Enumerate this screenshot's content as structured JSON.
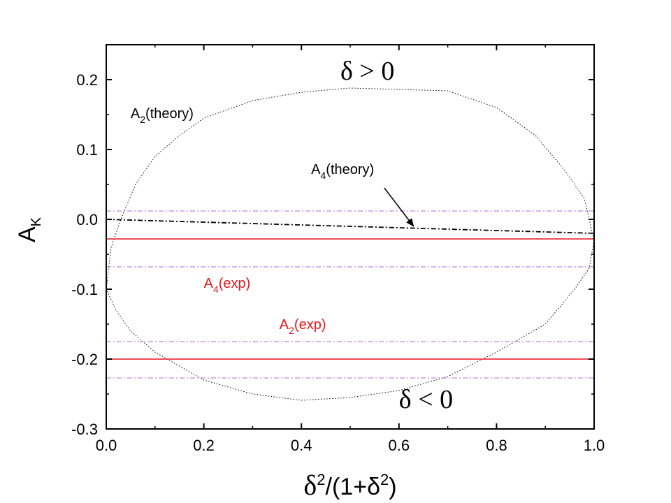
{
  "chart_data": {
    "type": "line",
    "title": "",
    "xlabel": {
      "base": "δ",
      "sup1": "2",
      "mid": "/(1+δ",
      "sup2": "2",
      "end": ")"
    },
    "ylabel": {
      "base": "A",
      "sub": "K"
    },
    "xlim": [
      0.0,
      1.0
    ],
    "ylim": [
      -0.3,
      0.25
    ],
    "x_ticks": [
      "0.0",
      "0.2",
      "0.4",
      "0.6",
      "0.8",
      "1.0"
    ],
    "y_ticks": [
      "-0.3",
      "-0.2",
      "-0.1",
      "0.0",
      "0.1",
      "0.2"
    ],
    "x_tick_values": [
      0.0,
      0.2,
      0.4,
      0.6,
      0.8,
      1.0
    ],
    "y_tick_values": [
      -0.3,
      -0.2,
      -0.1,
      0.0,
      0.1,
      0.2
    ],
    "series": [
      {
        "style": "dotted",
        "color": "#000000",
        "points": [
          [
            0.0,
            -0.1
          ],
          [
            0.01,
            -0.04
          ],
          [
            0.03,
            0.0
          ],
          [
            0.06,
            0.05
          ],
          [
            0.1,
            0.09
          ],
          [
            0.15,
            0.12
          ],
          [
            0.2,
            0.145
          ],
          [
            0.3,
            0.17
          ],
          [
            0.4,
            0.182
          ],
          [
            0.5,
            0.188
          ],
          [
            0.6,
            0.186
          ],
          [
            0.7,
            0.184
          ],
          [
            0.8,
            0.16
          ],
          [
            0.88,
            0.12
          ],
          [
            0.94,
            0.07
          ],
          [
            0.98,
            0.03
          ],
          [
            1.0,
            -0.03
          ],
          [
            0.99,
            -0.07
          ],
          [
            0.96,
            -0.1
          ],
          [
            0.9,
            -0.15
          ],
          [
            0.8,
            -0.19
          ],
          [
            0.7,
            -0.225
          ],
          [
            0.6,
            -0.245
          ],
          [
            0.5,
            -0.255
          ],
          [
            0.4,
            -0.259
          ],
          [
            0.3,
            -0.25
          ],
          [
            0.2,
            -0.23
          ],
          [
            0.1,
            -0.19
          ],
          [
            0.05,
            -0.16
          ],
          [
            0.02,
            -0.13
          ],
          [
            0.0,
            -0.1
          ]
        ]
      },
      {
        "style": "dashdot",
        "color": "#000000",
        "points": [
          [
            0.0,
            0.0
          ],
          [
            0.2,
            -0.004
          ],
          [
            0.4,
            -0.008
          ],
          [
            0.6,
            -0.012
          ],
          [
            0.8,
            -0.016
          ],
          [
            1.0,
            -0.02
          ]
        ]
      },
      {
        "style": "solid",
        "color": "#e8141a",
        "points": [
          [
            0.0,
            -0.028
          ],
          [
            1.0,
            -0.028
          ]
        ]
      },
      {
        "style": "solid",
        "color": "#e8141a",
        "points": [
          [
            0.0,
            -0.2
          ],
          [
            1.0,
            -0.2
          ]
        ]
      },
      {
        "style": "dashdot",
        "color": "#b36ad9",
        "points": [
          [
            0.0,
            0.012
          ],
          [
            1.0,
            0.012
          ]
        ]
      },
      {
        "style": "dashdot",
        "color": "#b36ad9",
        "points": [
          [
            0.0,
            -0.068
          ],
          [
            1.0,
            -0.068
          ]
        ]
      },
      {
        "style": "dashdot",
        "color": "#b36ad9",
        "points": [
          [
            0.0,
            -0.175
          ],
          [
            1.0,
            -0.175
          ]
        ]
      },
      {
        "style": "dashdot",
        "color": "#b36ad9",
        "points": [
          [
            0.0,
            -0.227
          ],
          [
            1.0,
            -0.227
          ]
        ]
      }
    ],
    "annotations": [
      {
        "name": "a2-theory-label",
        "base": "A",
        "sub": "2",
        "rest": "(theory)",
        "color": "#000000",
        "x": 0.05,
        "y": 0.145
      },
      {
        "name": "a4-theory-label",
        "base": "A",
        "sub": "4",
        "rest": "(theory)",
        "color": "#000000",
        "x": 0.42,
        "y": 0.065
      },
      {
        "name": "a4-exp-label",
        "base": "A",
        "sub": "4",
        "rest": "(exp)",
        "color": "#e8141a",
        "x": 0.2,
        "y": -0.098
      },
      {
        "name": "a2-exp-label",
        "base": "A",
        "sub": "2",
        "rest": "(exp)",
        "color": "#e8141a",
        "x": 0.355,
        "y": -0.157
      },
      {
        "name": "delta-positive-label",
        "text": "δ > 0",
        "serif": true,
        "color": "#000000",
        "x": 0.48,
        "y": 0.2
      },
      {
        "name": "delta-negative-label",
        "text": "δ < 0",
        "serif": true,
        "color": "#000000",
        "x": 0.6,
        "y": -0.27
      }
    ],
    "arrows": [
      {
        "from": [
          0.57,
          0.045
        ],
        "to": [
          0.63,
          -0.01
        ],
        "color": "#000000"
      }
    ],
    "grid": false,
    "legend": "none"
  }
}
